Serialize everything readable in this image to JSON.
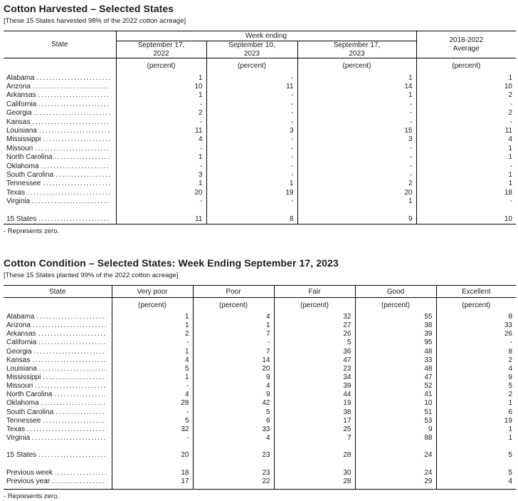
{
  "harvested": {
    "title": "Cotton Harvested – Selected States",
    "note": "[These 15 States harvested 98% of the 2022 cotton acreage]",
    "header": {
      "state_label": "State",
      "group_label": "Week ending",
      "columns": [
        "September 17,\n2022",
        "September 10,\n2023",
        "September 17,\n2023"
      ],
      "average_label": "2018-2022\nAverage",
      "unit_label": "(percent)"
    },
    "rows": [
      {
        "state": "Alabama",
        "values": [
          "1",
          "-",
          "1",
          "1"
        ]
      },
      {
        "state": "Arizona",
        "values": [
          "10",
          "11",
          "14",
          "10"
        ]
      },
      {
        "state": "Arkansas",
        "values": [
          "1",
          "-",
          "1",
          "2"
        ]
      },
      {
        "state": "California",
        "values": [
          "-",
          "-",
          "-",
          "-"
        ]
      },
      {
        "state": "Georgia",
        "values": [
          "2",
          "-",
          "-",
          "2"
        ]
      },
      {
        "state": "Kansas",
        "values": [
          "-",
          "-",
          "-",
          "-"
        ]
      },
      {
        "state": "Louisiana",
        "values": [
          "11",
          "3",
          "15",
          "11"
        ]
      },
      {
        "state": "Mississippi",
        "values": [
          "4",
          "-",
          "3",
          "4"
        ]
      },
      {
        "state": "Missouri",
        "values": [
          "-",
          "-",
          "-",
          "1"
        ]
      },
      {
        "state": "North Carolina",
        "values": [
          "1",
          "-",
          "-",
          "1"
        ]
      },
      {
        "state": "Oklahoma",
        "values": [
          "-",
          "-",
          "-",
          "-"
        ]
      },
      {
        "state": "South Carolina",
        "values": [
          "3",
          "-",
          "-",
          "1"
        ]
      },
      {
        "state": "Tennessee",
        "values": [
          "1",
          "1",
          "2",
          "1"
        ]
      },
      {
        "state": "Texas",
        "values": [
          "20",
          "19",
          "20",
          "18"
        ]
      },
      {
        "state": "Virginia",
        "values": [
          "-",
          "-",
          "1",
          "-"
        ]
      }
    ],
    "total": {
      "state": "15 States",
      "values": [
        "11",
        "8",
        "9",
        "10"
      ]
    },
    "footnote": "- Represents zero."
  },
  "condition": {
    "title": "Cotton Condition – Selected States: Week Ending September 17, 2023",
    "note": "[These 15 States planted 99% of the 2022 cotton acreage]",
    "header": {
      "state_label": "State",
      "columns": [
        "Very poor",
        "Poor",
        "Fair",
        "Good",
        "Excellent"
      ],
      "unit_label": "(percent)"
    },
    "rows": [
      {
        "state": "Alabama",
        "values": [
          "1",
          "4",
          "32",
          "55",
          "8"
        ]
      },
      {
        "state": "Arizona",
        "values": [
          "1",
          "1",
          "27",
          "38",
          "33"
        ]
      },
      {
        "state": "Arkansas",
        "values": [
          "2",
          "7",
          "26",
          "39",
          "26"
        ]
      },
      {
        "state": "California",
        "values": [
          "-",
          "-",
          "5",
          "95",
          "-"
        ]
      },
      {
        "state": "Georgia",
        "values": [
          "1",
          "7",
          "36",
          "48",
          "8"
        ]
      },
      {
        "state": "Kansas",
        "values": [
          "4",
          "14",
          "47",
          "33",
          "2"
        ]
      },
      {
        "state": "Louisiana",
        "values": [
          "5",
          "20",
          "23",
          "48",
          "4"
        ]
      },
      {
        "state": "Mississippi",
        "values": [
          "1",
          "9",
          "34",
          "47",
          "9"
        ]
      },
      {
        "state": "Missouri",
        "values": [
          "-",
          "4",
          "39",
          "52",
          "5"
        ]
      },
      {
        "state": "North Carolina",
        "values": [
          "4",
          "9",
          "44",
          "41",
          "2"
        ]
      },
      {
        "state": "Oklahoma",
        "values": [
          "28",
          "42",
          "19",
          "10",
          "1"
        ]
      },
      {
        "state": "South Carolina",
        "values": [
          "-",
          "5",
          "38",
          "51",
          "6"
        ]
      },
      {
        "state": "Tennessee",
        "values": [
          "5",
          "6",
          "17",
          "53",
          "19"
        ]
      },
      {
        "state": "Texas",
        "values": [
          "32",
          "33",
          "25",
          "9",
          "1"
        ]
      },
      {
        "state": "Virginia",
        "values": [
          "-",
          "4",
          "7",
          "88",
          "1"
        ]
      }
    ],
    "total": {
      "state": "15 States",
      "values": [
        "20",
        "23",
        "28",
        "24",
        "5"
      ]
    },
    "extra_rows": [
      {
        "state": "Previous week",
        "values": [
          "18",
          "23",
          "30",
          "24",
          "5"
        ]
      },
      {
        "state": "Previous year",
        "values": [
          "17",
          "22",
          "28",
          "29",
          "4"
        ]
      }
    ],
    "footnote": "- Represents zero."
  }
}
